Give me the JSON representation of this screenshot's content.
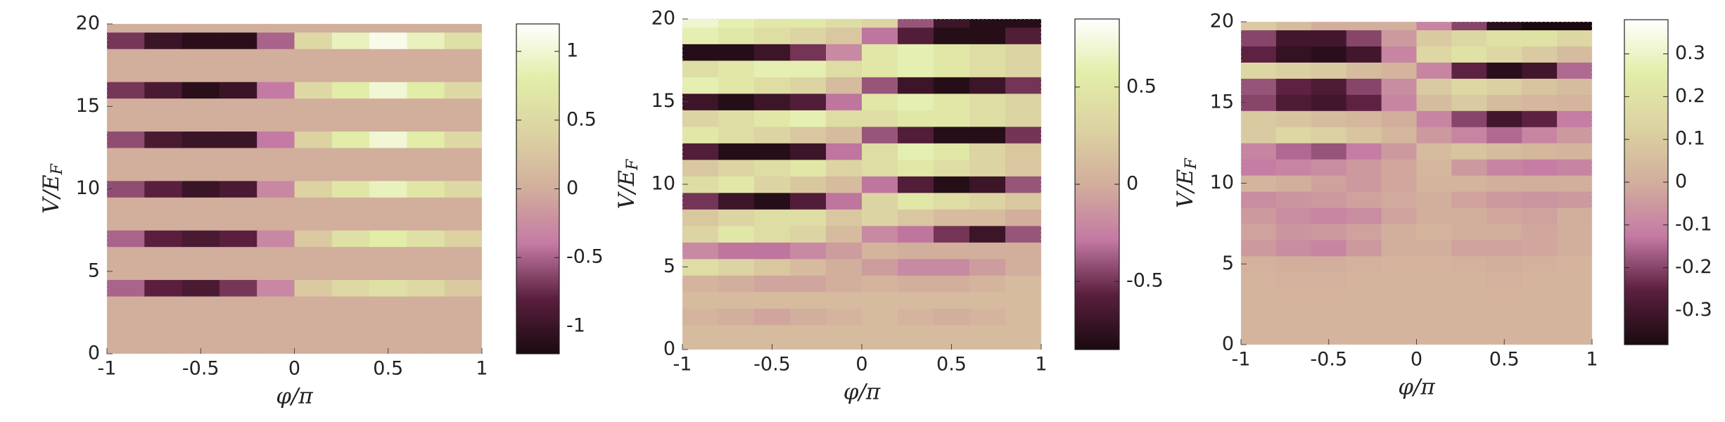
{
  "chart_data": [
    {
      "type": "heatmap",
      "xlabel": "φ/π",
      "ylabel": "V/E",
      "ylabel_sub": "F",
      "x": [
        -0.9,
        -0.7,
        -0.5,
        -0.3,
        -0.1,
        0.1,
        0.3,
        0.5,
        0.7,
        0.9
      ],
      "y": [
        0,
        1,
        2,
        3,
        4,
        5,
        6,
        7,
        8,
        9,
        10,
        11,
        12,
        13,
        14,
        15,
        16,
        17,
        18,
        19,
        20
      ],
      "z": [
        [
          0,
          0,
          0,
          0,
          0,
          0,
          0,
          0,
          0,
          0
        ],
        [
          0,
          0,
          0,
          0,
          0,
          0,
          0,
          0,
          0,
          0
        ],
        [
          0,
          0,
          0,
          0,
          0,
          0,
          0,
          0,
          0,
          0
        ],
        [
          0,
          0,
          0,
          0,
          0,
          0,
          0,
          0,
          0,
          0
        ],
        [
          -0.5,
          -0.8,
          -0.9,
          -0.7,
          -0.3,
          0.3,
          0.5,
          0.6,
          0.5,
          0.3
        ],
        [
          0,
          0,
          0,
          0,
          0,
          0,
          0,
          0,
          0,
          0
        ],
        [
          0,
          0,
          0,
          0,
          0,
          0,
          0,
          0,
          0,
          0
        ],
        [
          -0.5,
          -0.8,
          -0.9,
          -0.8,
          -0.3,
          0.3,
          0.6,
          0.8,
          0.6,
          0.4
        ],
        [
          0,
          0,
          0,
          0,
          0,
          0,
          0,
          0,
          0,
          0
        ],
        [
          0,
          0,
          0,
          0,
          0,
          0,
          0,
          0,
          0,
          0
        ],
        [
          -0.6,
          -0.8,
          -1,
          -0.9,
          -0.3,
          0.4,
          0.7,
          0.9,
          0.7,
          0.5
        ],
        [
          0,
          0,
          0,
          0,
          0,
          0,
          0,
          0,
          0,
          0
        ],
        [
          0,
          0,
          0,
          0,
          0,
          0,
          0,
          0,
          0,
          0
        ],
        [
          -0.6,
          -0.9,
          -1,
          -1,
          -0.4,
          0.4,
          0.8,
          1,
          0.8,
          0.5
        ],
        [
          0,
          0,
          0,
          0,
          0,
          0,
          0,
          0,
          0,
          0
        ],
        [
          0,
          0,
          0,
          0,
          0,
          0,
          0,
          0,
          0,
          0
        ],
        [
          -0.7,
          -0.9,
          -1.1,
          -1,
          -0.4,
          0.5,
          0.8,
          1,
          0.8,
          0.5
        ],
        [
          0,
          0,
          0,
          0,
          0,
          0,
          0,
          0,
          0,
          0
        ],
        [
          0,
          0,
          0,
          0,
          0,
          0,
          0,
          0,
          0,
          0
        ],
        [
          -0.7,
          -1,
          -1.1,
          -1.1,
          -0.5,
          0.5,
          0.9,
          1.1,
          0.9,
          0.6
        ],
        [
          0,
          0,
          0,
          0,
          0,
          0,
          0,
          0,
          0,
          0
        ]
      ],
      "xlim": [
        -1,
        1
      ],
      "ylim": [
        0,
        20
      ],
      "xticks": [
        -1,
        -0.5,
        0,
        0.5,
        1
      ],
      "yticks": [
        0,
        5,
        10,
        15,
        20
      ],
      "clim": [
        -1.2,
        1.2
      ],
      "cticks": [
        -1,
        -0.5,
        0,
        0.5,
        1
      ],
      "colormap": [
        "#1a0a10",
        "#5a1f3e",
        "#c47aa4",
        "#d2ae9c",
        "#dcd2a2",
        "#e2eda8",
        "#ffffff"
      ]
    },
    {
      "type": "heatmap",
      "xlabel": "φ/π",
      "ylabel": "V/E",
      "ylabel_sub": "F",
      "x": [
        -0.9,
        -0.7,
        -0.5,
        -0.3,
        -0.1,
        0.1,
        0.3,
        0.5,
        0.7,
        0.9
      ],
      "y": [
        0,
        1,
        2,
        3,
        4,
        5,
        6,
        7,
        8,
        9,
        10,
        11,
        12,
        13,
        14,
        15,
        16,
        17,
        18,
        19,
        20
      ],
      "z": [
        [
          0.1,
          0.1,
          0.1,
          0.1,
          0.1,
          0.1,
          0.1,
          0.1,
          0.1,
          0.1
        ],
        [
          0.1,
          0.1,
          0.1,
          0.1,
          0.1,
          0.1,
          0.1,
          0.1,
          0.1,
          0.1
        ],
        [
          0.05,
          0,
          -0.05,
          0,
          0.05,
          0.1,
          0.05,
          0,
          0.05,
          0.1
        ],
        [
          0.1,
          0.1,
          0.1,
          0.1,
          0.1,
          0.1,
          0.1,
          0.1,
          0.1,
          0.1
        ],
        [
          0.05,
          0,
          -0.05,
          -0.05,
          0,
          0.05,
          0,
          0,
          0.05,
          0.1
        ],
        [
          0.4,
          0.3,
          0.2,
          0.1,
          0,
          -0.1,
          -0.2,
          -0.2,
          -0.1,
          0
        ],
        [
          -0.2,
          -0.3,
          -0.3,
          -0.2,
          -0.1,
          0.05,
          0,
          0,
          0,
          0
        ],
        [
          0.3,
          0.5,
          0.4,
          0.3,
          0.1,
          -0.2,
          -0.3,
          -0.5,
          -0.7,
          -0.4
        ],
        [
          0.2,
          0.3,
          0.4,
          0.4,
          0.2,
          0.3,
          0.2,
          0.1,
          0.1,
          0
        ],
        [
          -0.5,
          -0.7,
          -0.8,
          -0.6,
          -0.3,
          0.3,
          0.5,
          0.4,
          0.3,
          0.2
        ],
        [
          0.4,
          0.5,
          0.3,
          0.2,
          0.1,
          -0.3,
          -0.6,
          -0.8,
          -0.7,
          -0.4
        ],
        [
          0.2,
          0.3,
          0.4,
          0.5,
          0.3,
          0.4,
          0.5,
          0.4,
          0.3,
          0.2
        ],
        [
          -0.6,
          -0.8,
          -0.8,
          -0.7,
          -0.3,
          0.4,
          0.6,
          0.5,
          0.3,
          0.2
        ],
        [
          0.5,
          0.4,
          0.3,
          0.2,
          0.1,
          -0.4,
          -0.6,
          -0.8,
          -0.8,
          -0.5
        ],
        [
          0.3,
          0.4,
          0.5,
          0.6,
          0.4,
          0.4,
          0.5,
          0.5,
          0.4,
          0.3
        ],
        [
          -0.7,
          -0.8,
          -0.7,
          -0.6,
          -0.3,
          0.5,
          0.6,
          0.5,
          0.4,
          0.3
        ],
        [
          0.6,
          0.5,
          0.4,
          0.3,
          0.1,
          -0.4,
          -0.7,
          -0.8,
          -0.7,
          -0.5
        ],
        [
          0.4,
          0.5,
          0.6,
          0.6,
          0.4,
          0.5,
          0.6,
          0.5,
          0.4,
          0.3
        ],
        [
          -0.8,
          -0.8,
          -0.7,
          -0.5,
          -0.2,
          0.5,
          0.6,
          0.5,
          0.4,
          0.3
        ],
        [
          0.6,
          0.5,
          0.4,
          0.3,
          0.2,
          -0.3,
          -0.6,
          -0.8,
          -0.8,
          -0.6
        ],
        [
          0.7,
          0.6,
          0.5,
          0.5,
          0.4,
          0.3,
          -0.4,
          -0.7,
          -0.8,
          -0.8
        ]
      ],
      "xlim": [
        -1,
        1
      ],
      "ylim": [
        0,
        20
      ],
      "xticks": [
        -1,
        -0.5,
        0,
        0.5,
        1
      ],
      "yticks": [
        0,
        5,
        10,
        15,
        20
      ],
      "clim": [
        -0.85,
        0.85
      ],
      "cticks": [
        -0.5,
        0,
        0.5
      ],
      "colormap": [
        "#1a0a10",
        "#5a1f3e",
        "#c47aa4",
        "#d2ae9c",
        "#dcd2a2",
        "#e2eda8",
        "#ffffff"
      ]
    },
    {
      "type": "heatmap",
      "xlabel": "φ/π",
      "ylabel": "V/E",
      "ylabel_sub": "F",
      "x": [
        -0.9,
        -0.7,
        -0.5,
        -0.3,
        -0.1,
        0.1,
        0.3,
        0.5,
        0.7,
        0.9
      ],
      "y": [
        0,
        1,
        2,
        3,
        4,
        5,
        6,
        7,
        8,
        9,
        10,
        11,
        12,
        13,
        14,
        15,
        16,
        17,
        18,
        19,
        20
      ],
      "z": [
        [
          0.02,
          0.02,
          0.02,
          0.02,
          0.02,
          0.02,
          0.02,
          0.02,
          0.02,
          0.02
        ],
        [
          0.02,
          0.02,
          0.02,
          0.02,
          0.02,
          0.02,
          0.02,
          0.02,
          0.02,
          0.02
        ],
        [
          0.02,
          0.02,
          0.02,
          0.02,
          0.02,
          0.02,
          0.02,
          0.02,
          0.02,
          0.02
        ],
        [
          0.02,
          0.02,
          0.02,
          0.02,
          0.02,
          0.02,
          0.02,
          0.02,
          0.02,
          0.02
        ],
        [
          0.02,
          0.01,
          0.01,
          0.02,
          0.02,
          0.02,
          0.02,
          0.01,
          0.02,
          0.02
        ],
        [
          0.01,
          0,
          0,
          0.01,
          0.02,
          0.02,
          0.01,
          0,
          0.01,
          0.02
        ],
        [
          -0.05,
          -0.08,
          -0.1,
          -0.05,
          0,
          0,
          -0.03,
          -0.03,
          -0.02,
          0
        ],
        [
          -0.03,
          -0.06,
          -0.05,
          -0.03,
          0,
          0.02,
          0,
          0,
          -0.02,
          0
        ],
        [
          -0.05,
          -0.08,
          -0.1,
          -0.08,
          -0.03,
          0,
          0,
          -0.02,
          -0.03,
          0
        ],
        [
          -0.08,
          -0.06,
          -0.05,
          -0.03,
          -0.01,
          0,
          -0.03,
          -0.05,
          -0.06,
          -0.05
        ],
        [
          0.02,
          0,
          -0.03,
          -0.05,
          -0.02,
          0.02,
          0.02,
          0,
          0,
          0
        ],
        [
          -0.12,
          -0.1,
          -0.08,
          -0.05,
          -0.02,
          0.03,
          -0.05,
          -0.1,
          -0.12,
          -0.1
        ],
        [
          -0.1,
          -0.15,
          -0.18,
          -0.12,
          -0.05,
          0.05,
          0.08,
          0.05,
          0.03,
          0.02
        ],
        [
          0.1,
          0.15,
          0.12,
          0.08,
          0.03,
          -0.05,
          -0.1,
          -0.15,
          -0.1,
          -0.05
        ],
        [
          0.1,
          0.08,
          0.05,
          0.03,
          0,
          -0.1,
          -0.2,
          -0.3,
          -0.25,
          -0.12
        ],
        [
          -0.2,
          -0.28,
          -0.3,
          -0.25,
          -0.1,
          0.05,
          0.1,
          0.05,
          0.03,
          0.02
        ],
        [
          -0.18,
          -0.25,
          -0.28,
          -0.2,
          -0.08,
          0.1,
          0.15,
          0.12,
          0.08,
          0.05
        ],
        [
          0.15,
          0.12,
          0.1,
          0.05,
          0.02,
          -0.1,
          -0.25,
          -0.35,
          -0.3,
          -0.15
        ],
        [
          -0.25,
          -0.33,
          -0.35,
          -0.3,
          -0.1,
          0.15,
          0.2,
          0.15,
          0.1,
          0.05
        ],
        [
          -0.2,
          -0.3,
          -0.3,
          -0.2,
          -0.05,
          0.1,
          0.15,
          0.2,
          0.2,
          0.15
        ],
        [
          0.1,
          0.05,
          0,
          0,
          0,
          -0.1,
          -0.2,
          -0.35,
          -0.38,
          -0.38
        ]
      ],
      "xlim": [
        -1,
        1
      ],
      "ylim": [
        0,
        20
      ],
      "xticks": [
        -1,
        -0.5,
        0,
        0.5,
        1
      ],
      "yticks": [
        0,
        5,
        10,
        15,
        20
      ],
      "clim": [
        -0.38,
        0.38
      ],
      "cticks": [
        -0.3,
        -0.2,
        -0.1,
        0,
        0.1,
        0.2,
        0.3
      ],
      "colormap": [
        "#1a0a10",
        "#5a1f3e",
        "#c47aa4",
        "#d2ae9c",
        "#dcd2a2",
        "#e2eda8",
        "#ffffff"
      ]
    }
  ]
}
